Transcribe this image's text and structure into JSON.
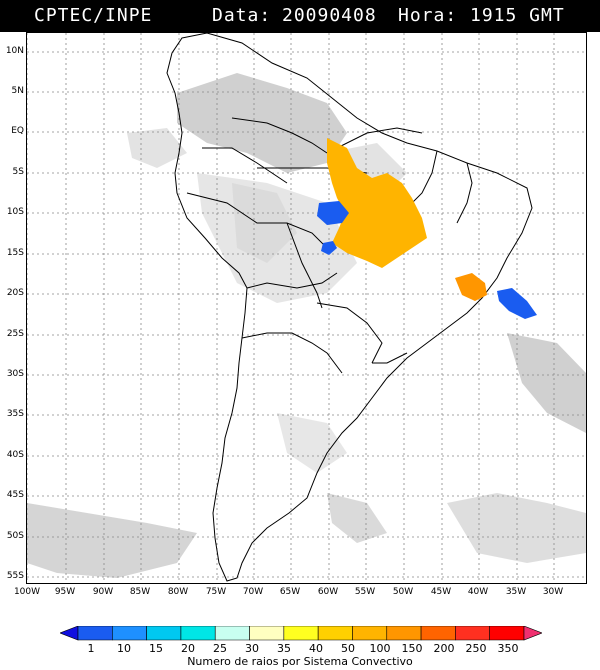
{
  "header": {
    "source": "CPTEC/INPE",
    "date_label": "Data:",
    "date_value": "20090408",
    "hour_label": "Hora:",
    "hour_value": "1915 GMT"
  },
  "axes": {
    "lat_labels": [
      "10N",
      "5N",
      "EQ",
      "5S",
      "10S",
      "15S",
      "20S",
      "25S",
      "30S",
      "35S",
      "40S",
      "45S",
      "50S",
      "55S"
    ],
    "lon_labels": [
      "100W",
      "95W",
      "90W",
      "85W",
      "80W",
      "75W",
      "70W",
      "65W",
      "60W",
      "55W",
      "50W",
      "45W",
      "40W",
      "35W",
      "30W"
    ]
  },
  "colorbar": {
    "labels": [
      "1",
      "10",
      "15",
      "20",
      "25",
      "30",
      "35",
      "40",
      "50",
      "100",
      "150",
      "200",
      "250",
      "350"
    ],
    "colors": [
      "#1010e0",
      "#1a5cf0",
      "#1e90ff",
      "#00c8f0",
      "#00e6e6",
      "#c8fff0",
      "#ffffc0",
      "#ffff20",
      "#ffd000",
      "#ffb400",
      "#ff9600",
      "#ff6400",
      "#ff3020",
      "#ff0000",
      "#f03070"
    ],
    "caption": "Numero de raios por Sistema Convectivo"
  }
}
